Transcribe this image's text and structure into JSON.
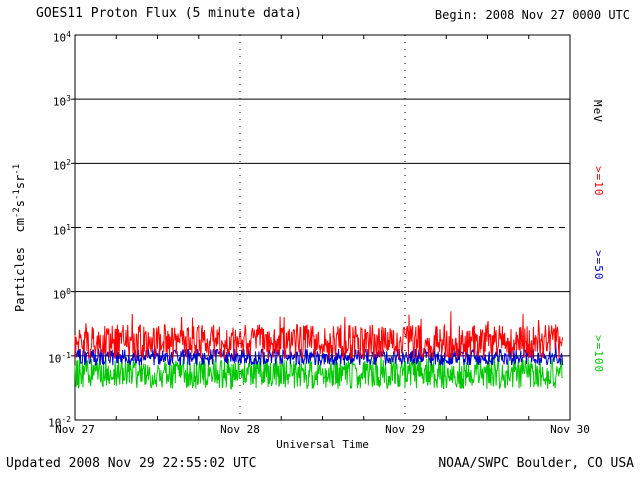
{
  "header": {
    "title": "GOES11 Proton Flux (5 minute data)",
    "begin_label": "Begin: 2008 Nov 27 0000 UTC"
  },
  "footer": {
    "updated": "Updated 2008 Nov 29 22:55:02 UTC",
    "credit": "NOAA/SWPC Boulder, CO USA"
  },
  "chart_data": {
    "type": "line",
    "title": "GOES11 Proton Flux (5 minute data)",
    "subtitle": "Begin: 2008 Nov 27 0000 UTC",
    "xlabel": "Universal Time",
    "ylabel": "Particles cm-2s-1sr-1",
    "ylabel_parts": [
      {
        "t": "Particles  cm"
      },
      {
        "sup": "-2"
      },
      {
        "t": "s"
      },
      {
        "sup": "-1"
      },
      {
        "t": "sr"
      },
      {
        "sup": "-1"
      }
    ],
    "y_scale": "log",
    "ylim": [
      0.01,
      10000
    ],
    "x_range": [
      "2008 Nov 27 0000 UTC",
      "2008 Nov 30 0000 UTC"
    ],
    "xticks": [
      "Nov 27",
      "Nov 28",
      "Nov 29",
      "Nov 30"
    ],
    "yticks": [
      {
        "base": "10",
        "exp": "4"
      },
      {
        "base": "10",
        "exp": "3"
      },
      {
        "base": "10",
        "exp": "2"
      },
      {
        "base": "10",
        "exp": "1"
      },
      {
        "base": "10",
        "exp": "0"
      },
      {
        "base": "10",
        "exp": "-1"
      },
      {
        "base": "10",
        "exp": "-2"
      }
    ],
    "right_axis_title": "MeV",
    "grid": {
      "solid_decades": [
        3,
        2,
        0,
        -1
      ],
      "dashed_decades": [
        1
      ],
      "vertical_dotted_days": [
        1,
        2
      ]
    },
    "series": [
      {
        "name": "Protons >=10 MeV",
        "label": ">=10",
        "color": "#ff0000",
        "points": 852,
        "typical_flux": 0.17,
        "flux_range": [
          0.09,
          0.55
        ],
        "log10_base": -0.78,
        "log10_jitter": 0.27,
        "spike_prob": 0.04,
        "spike_log10": 0.28,
        "seed": 1234567
      },
      {
        "name": "Protons >=50 MeV",
        "label": ">=50",
        "color": "#0000cc",
        "points": 852,
        "typical_flux": 0.095,
        "flux_range": [
          0.07,
          0.17
        ],
        "log10_base": -1.02,
        "log10_jitter": 0.13,
        "spike_prob": 0.02,
        "spike_log10": 0.15,
        "seed": 7654321
      },
      {
        "name": "Protons >=100 MeV",
        "label": ">=100",
        "color": "#00c800",
        "points": 852,
        "typical_flux": 0.052,
        "flux_range": [
          0.025,
          0.11
        ],
        "log10_base": -1.28,
        "log10_jitter": 0.24,
        "spike_prob": 0.02,
        "spike_log10": 0.12,
        "seed": 2468135
      }
    ]
  }
}
